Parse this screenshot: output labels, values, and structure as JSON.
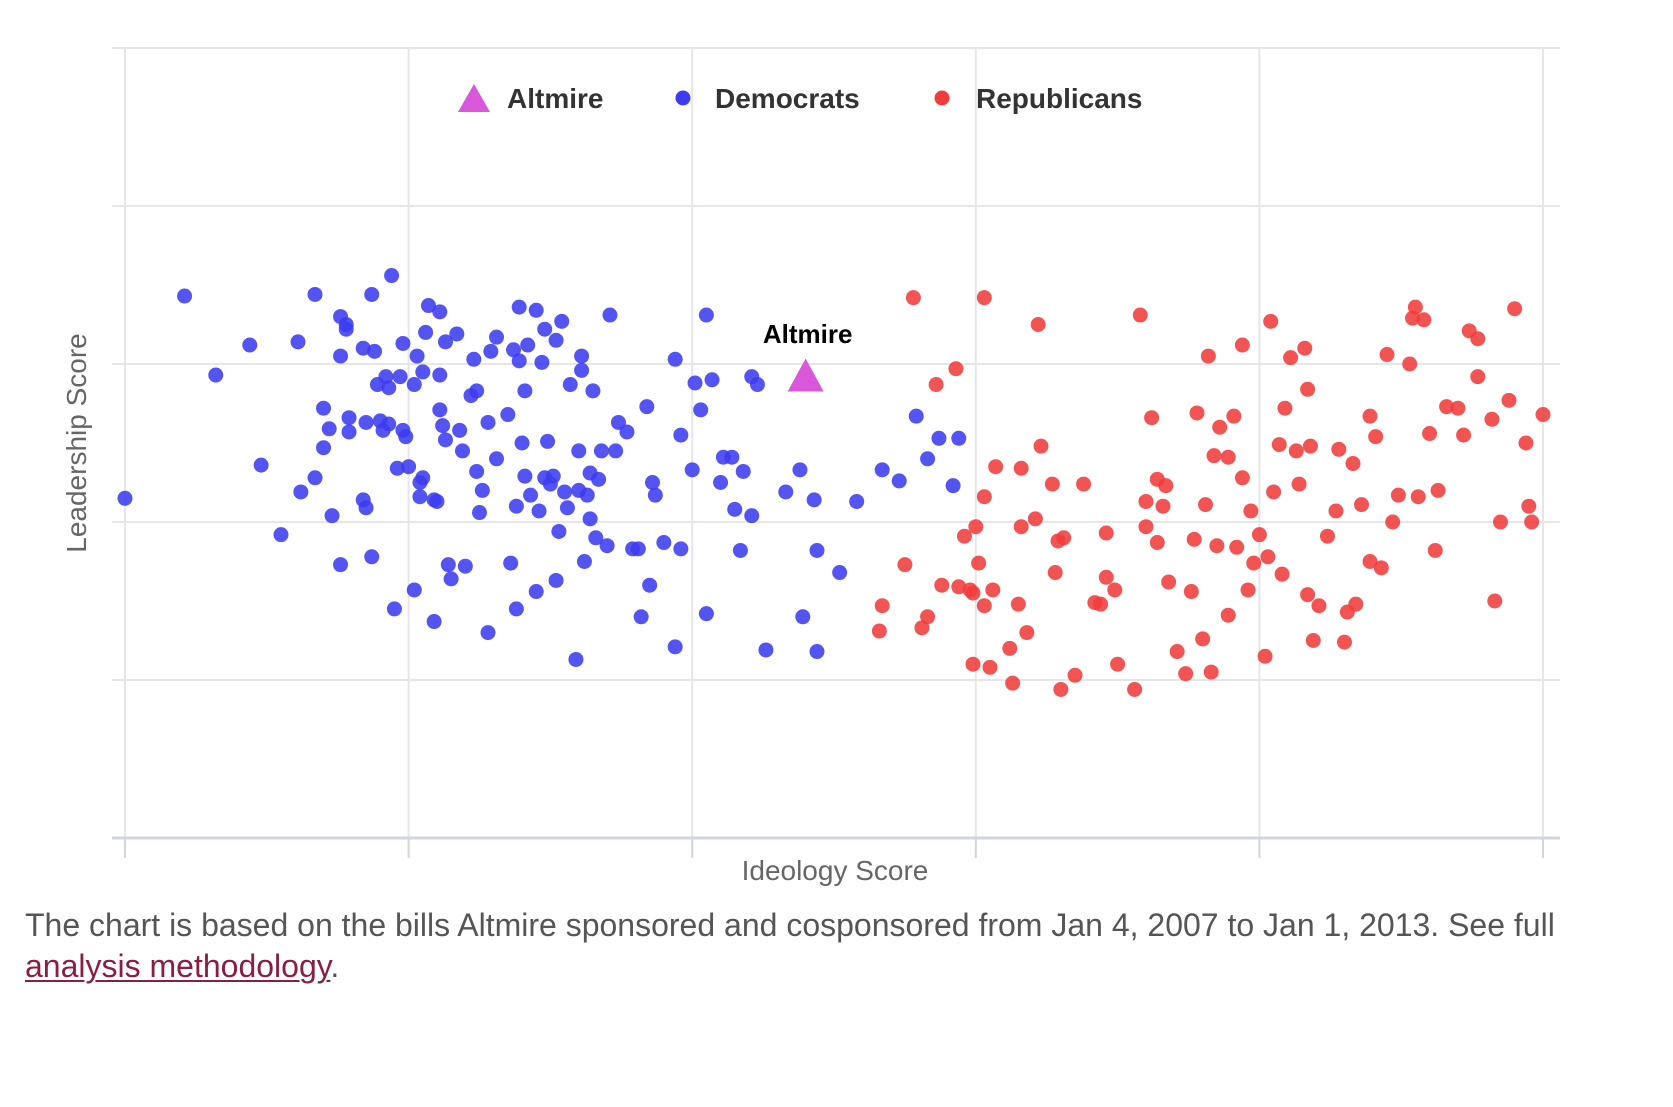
{
  "chart_data": {
    "type": "scatter",
    "title": "",
    "xlabel": "Ideology Score",
    "ylabel": "Leadership Score",
    "xlim": [
      -0.01,
      5.05
    ],
    "ylim": [
      -0.1,
      5.0
    ],
    "xticks": [
      0,
      1,
      2,
      3,
      4,
      5
    ],
    "yticks": [
      1,
      2,
      3,
      4,
      5
    ],
    "tick_labels_shown": false,
    "grid": true,
    "legend_position": "top-center",
    "legend": [
      {
        "name": "Altmire",
        "marker": "triangle",
        "color": "#d957d9"
      },
      {
        "name": "Democrats",
        "marker": "circle",
        "color": "#3c3cf0"
      },
      {
        "name": "Republicans",
        "marker": "circle",
        "color": "#f03c3c"
      }
    ],
    "annotations": [
      {
        "text": "Altmire",
        "x": 2.4,
        "y": 3.14
      }
    ],
    "series": [
      {
        "name": "Altmire",
        "marker": "triangle",
        "color": "#d957d9",
        "points": [
          [
            2.4,
            2.94
          ]
        ]
      },
      {
        "name": "Democrats",
        "marker": "circle",
        "color": "#3c3cf0",
        "points": [
          [
            0.0,
            2.15
          ],
          [
            0.21,
            3.43
          ],
          [
            0.32,
            2.93
          ],
          [
            0.44,
            3.12
          ],
          [
            0.48,
            2.36
          ],
          [
            0.55,
            1.92
          ],
          [
            0.61,
            3.14
          ],
          [
            0.62,
            2.19
          ],
          [
            0.67,
            2.28
          ],
          [
            0.67,
            3.44
          ],
          [
            0.7,
            2.72
          ],
          [
            0.72,
            2.59
          ],
          [
            0.7,
            2.47
          ],
          [
            0.73,
            2.04
          ],
          [
            0.76,
            1.73
          ],
          [
            0.76,
            3.3
          ],
          [
            0.76,
            3.05
          ],
          [
            0.78,
            3.22
          ],
          [
            0.78,
            3.25
          ],
          [
            0.79,
            2.66
          ],
          [
            0.79,
            2.57
          ],
          [
            0.84,
            2.14
          ],
          [
            0.85,
            2.09
          ],
          [
            0.84,
            3.1
          ],
          [
            0.85,
            2.63
          ],
          [
            0.87,
            3.44
          ],
          [
            0.87,
            1.78
          ],
          [
            0.88,
            3.08
          ],
          [
            0.89,
            2.87
          ],
          [
            0.9,
            2.64
          ],
          [
            0.91,
            2.58
          ],
          [
            0.92,
            2.92
          ],
          [
            0.93,
            2.62
          ],
          [
            0.93,
            2.85
          ],
          [
            0.94,
            3.56
          ],
          [
            0.95,
            1.45
          ],
          [
            0.96,
            2.34
          ],
          [
            0.97,
            2.92
          ],
          [
            0.98,
            3.13
          ],
          [
            0.98,
            2.58
          ],
          [
            0.99,
            2.54
          ],
          [
            1.0,
            2.35
          ],
          [
            1.02,
            2.87
          ],
          [
            1.02,
            1.57
          ],
          [
            1.03,
            3.05
          ],
          [
            1.04,
            2.25
          ],
          [
            1.04,
            2.16
          ],
          [
            1.05,
            2.28
          ],
          [
            1.05,
            2.95
          ],
          [
            1.06,
            3.2
          ],
          [
            1.07,
            3.37
          ],
          [
            1.09,
            1.37
          ],
          [
            1.09,
            2.14
          ],
          [
            1.1,
            2.13
          ],
          [
            1.11,
            3.33
          ],
          [
            1.11,
            2.71
          ],
          [
            1.11,
            2.93
          ],
          [
            1.12,
            2.61
          ],
          [
            1.13,
            2.52
          ],
          [
            1.13,
            3.14
          ],
          [
            1.14,
            1.73
          ],
          [
            1.15,
            1.64
          ],
          [
            1.17,
            3.19
          ],
          [
            1.18,
            2.58
          ],
          [
            1.19,
            2.45
          ],
          [
            1.2,
            1.72
          ],
          [
            1.22,
            2.8
          ],
          [
            1.23,
            3.03
          ],
          [
            1.24,
            2.32
          ],
          [
            1.24,
            2.83
          ],
          [
            1.25,
            2.06
          ],
          [
            1.26,
            2.2
          ],
          [
            1.28,
            2.63
          ],
          [
            1.28,
            1.3
          ],
          [
            1.29,
            3.08
          ],
          [
            1.31,
            3.17
          ],
          [
            1.31,
            2.4
          ],
          [
            1.35,
            2.68
          ],
          [
            1.36,
            1.74
          ],
          [
            1.37,
            3.09
          ],
          [
            1.38,
            2.1
          ],
          [
            1.38,
            1.45
          ],
          [
            1.39,
            3.36
          ],
          [
            1.39,
            3.02
          ],
          [
            1.4,
            2.5
          ],
          [
            1.41,
            2.29
          ],
          [
            1.41,
            2.83
          ],
          [
            1.42,
            3.12
          ],
          [
            1.43,
            2.17
          ],
          [
            1.45,
            1.56
          ],
          [
            1.45,
            3.34
          ],
          [
            1.46,
            2.07
          ],
          [
            1.47,
            3.01
          ],
          [
            1.48,
            2.28
          ],
          [
            1.48,
            3.22
          ],
          [
            1.49,
            2.51
          ],
          [
            1.5,
            2.24
          ],
          [
            1.51,
            2.29
          ],
          [
            1.52,
            1.63
          ],
          [
            1.52,
            3.15
          ],
          [
            1.53,
            1.94
          ],
          [
            1.54,
            3.27
          ],
          [
            1.55,
            2.19
          ],
          [
            1.56,
            2.09
          ],
          [
            1.57,
            2.87
          ],
          [
            1.59,
            1.13
          ],
          [
            1.6,
            2.2
          ],
          [
            1.6,
            2.45
          ],
          [
            1.61,
            2.96
          ],
          [
            1.61,
            3.05
          ],
          [
            1.62,
            1.75
          ],
          [
            1.63,
            2.17
          ],
          [
            1.64,
            2.02
          ],
          [
            1.64,
            2.31
          ],
          [
            1.65,
            2.83
          ],
          [
            1.66,
            1.9
          ],
          [
            1.67,
            2.27
          ],
          [
            1.68,
            2.45
          ],
          [
            1.7,
            1.85
          ],
          [
            1.71,
            3.31
          ],
          [
            1.73,
            2.45
          ],
          [
            1.74,
            2.63
          ],
          [
            1.77,
            2.57
          ],
          [
            1.79,
            1.83
          ],
          [
            1.81,
            1.83
          ],
          [
            1.82,
            1.4
          ],
          [
            1.84,
            2.73
          ],
          [
            1.85,
            1.6
          ],
          [
            1.86,
            2.25
          ],
          [
            1.87,
            2.17
          ],
          [
            1.9,
            1.87
          ],
          [
            1.94,
            1.21
          ],
          [
            1.94,
            3.03
          ],
          [
            1.96,
            2.55
          ],
          [
            1.96,
            1.83
          ],
          [
            2.0,
            2.33
          ],
          [
            2.01,
            2.88
          ],
          [
            2.03,
            2.71
          ],
          [
            2.05,
            1.42
          ],
          [
            2.05,
            3.31
          ],
          [
            2.07,
            2.9
          ],
          [
            2.1,
            2.25
          ],
          [
            2.11,
            2.41
          ],
          [
            2.14,
            2.41
          ],
          [
            2.15,
            2.08
          ],
          [
            2.17,
            1.82
          ],
          [
            2.18,
            2.32
          ],
          [
            2.21,
            2.04
          ],
          [
            2.23,
            2.87
          ],
          [
            2.21,
            2.92
          ],
          [
            2.26,
            1.19
          ],
          [
            2.33,
            2.19
          ],
          [
            2.39,
            1.4
          ],
          [
            2.44,
            1.18
          ],
          [
            2.38,
            2.33
          ],
          [
            2.44,
            1.82
          ],
          [
            2.43,
            2.14
          ],
          [
            2.52,
            1.68
          ],
          [
            2.58,
            2.13
          ],
          [
            2.67,
            2.33
          ],
          [
            2.73,
            2.26
          ],
          [
            2.83,
            2.4
          ],
          [
            2.79,
            2.67
          ],
          [
            2.87,
            2.53
          ],
          [
            2.92,
            2.23
          ],
          [
            2.94,
            2.53
          ]
        ]
      },
      {
        "name": "Republicans",
        "marker": "circle",
        "color": "#f03c3c",
        "points": [
          [
            2.66,
            1.31
          ],
          [
            2.67,
            1.47
          ],
          [
            2.75,
            1.73
          ],
          [
            2.81,
            1.33
          ],
          [
            2.83,
            1.4
          ],
          [
            2.86,
            2.87
          ],
          [
            2.88,
            1.6
          ],
          [
            2.93,
            2.97
          ],
          [
            2.94,
            1.59
          ],
          [
            2.96,
            1.91
          ],
          [
            2.99,
            1.1
          ],
          [
            2.99,
            1.55
          ],
          [
            2.98,
            1.57
          ],
          [
            3.0,
            1.97
          ],
          [
            3.01,
            1.74
          ],
          [
            3.03,
            1.47
          ],
          [
            3.03,
            3.42
          ],
          [
            3.05,
            1.08
          ],
          [
            3.03,
            2.16
          ],
          [
            3.06,
            1.57
          ],
          [
            3.07,
            2.35
          ],
          [
            3.12,
            1.2
          ],
          [
            3.13,
            0.98
          ],
          [
            3.15,
            1.48
          ],
          [
            3.16,
            2.34
          ],
          [
            3.16,
            1.97
          ],
          [
            3.18,
            1.3
          ],
          [
            3.22,
            3.25
          ],
          [
            3.23,
            2.48
          ],
          [
            3.27,
            2.24
          ],
          [
            3.28,
            1.68
          ],
          [
            3.3,
            0.94
          ],
          [
            3.29,
            1.88
          ],
          [
            3.31,
            1.9
          ],
          [
            3.35,
            1.03
          ],
          [
            3.38,
            2.24
          ],
          [
            3.42,
            1.49
          ],
          [
            3.44,
            1.48
          ],
          [
            3.46,
            1.65
          ],
          [
            3.46,
            1.93
          ],
          [
            3.49,
            1.57
          ],
          [
            3.5,
            1.1
          ],
          [
            3.56,
            0.94
          ],
          [
            3.58,
            3.31
          ],
          [
            3.6,
            1.97
          ],
          [
            3.6,
            2.13
          ],
          [
            3.62,
            2.66
          ],
          [
            3.64,
            2.27
          ],
          [
            3.64,
            1.87
          ],
          [
            3.66,
            2.1
          ],
          [
            3.67,
            2.23
          ],
          [
            3.68,
            1.62
          ],
          [
            3.71,
            1.18
          ],
          [
            3.74,
            1.04
          ],
          [
            3.76,
            1.56
          ],
          [
            3.77,
            1.89
          ],
          [
            3.78,
            2.69
          ],
          [
            3.8,
            1.26
          ],
          [
            3.81,
            2.11
          ],
          [
            3.82,
            3.05
          ],
          [
            3.83,
            1.05
          ],
          [
            3.84,
            2.42
          ],
          [
            3.85,
            1.85
          ],
          [
            3.86,
            2.6
          ],
          [
            3.89,
            2.41
          ],
          [
            3.89,
            1.41
          ],
          [
            3.91,
            2.67
          ],
          [
            3.92,
            1.84
          ],
          [
            3.94,
            3.12
          ],
          [
            3.94,
            2.28
          ],
          [
            3.96,
            1.57
          ],
          [
            3.97,
            2.07
          ],
          [
            3.98,
            1.74
          ],
          [
            4.0,
            1.92
          ],
          [
            4.02,
            1.15
          ],
          [
            4.03,
            1.78
          ],
          [
            4.04,
            3.27
          ],
          [
            4.05,
            2.19
          ],
          [
            4.07,
            2.49
          ],
          [
            4.08,
            1.67
          ],
          [
            4.09,
            2.72
          ],
          [
            4.11,
            3.04
          ],
          [
            4.13,
            2.45
          ],
          [
            4.14,
            2.24
          ],
          [
            4.16,
            3.1
          ],
          [
            4.17,
            1.54
          ],
          [
            4.17,
            2.84
          ],
          [
            4.18,
            2.48
          ],
          [
            4.19,
            1.25
          ],
          [
            4.21,
            1.47
          ],
          [
            4.24,
            1.91
          ],
          [
            4.27,
            2.07
          ],
          [
            4.28,
            2.46
          ],
          [
            4.3,
            1.24
          ],
          [
            4.33,
            2.37
          ],
          [
            4.34,
            1.48
          ],
          [
            4.36,
            2.11
          ],
          [
            4.39,
            2.67
          ],
          [
            4.41,
            2.54
          ],
          [
            4.43,
            1.71
          ],
          [
            4.45,
            3.06
          ],
          [
            4.47,
            2.0
          ],
          [
            4.49,
            2.17
          ],
          [
            4.53,
            3.0
          ],
          [
            4.54,
            3.29
          ],
          [
            4.56,
            2.16
          ],
          [
            4.58,
            3.28
          ],
          [
            4.6,
            2.56
          ],
          [
            4.63,
            2.2
          ],
          [
            4.66,
            2.73
          ],
          [
            4.7,
            2.72
          ],
          [
            4.74,
            3.21
          ],
          [
            4.77,
            2.92
          ],
          [
            4.82,
            2.65
          ],
          [
            4.85,
            2.0
          ],
          [
            4.88,
            2.77
          ],
          [
            4.9,
            3.35
          ],
          [
            4.94,
            2.5
          ],
          [
            4.96,
            2.0
          ],
          [
            5.0,
            2.68
          ],
          [
            4.39,
            1.75
          ],
          [
            4.31,
            1.43
          ],
          [
            4.77,
            3.16
          ],
          [
            4.62,
            1.82
          ],
          [
            4.95,
            2.1
          ],
          [
            4.55,
            3.36
          ],
          [
            4.72,
            2.55
          ],
          [
            4.83,
            1.5
          ],
          [
            2.78,
            3.42
          ],
          [
            3.21,
            2.02
          ]
        ]
      }
    ]
  },
  "legend_items": [
    "Altmire",
    "Democrats",
    "Republicans"
  ],
  "caption": {
    "text_before": "The chart is based on the bills Altmire sponsored and cosponsored from Jan 4, 2007 to Jan 1, 2013. See full ",
    "link_text": "analysis methodology",
    "text_after": "."
  }
}
